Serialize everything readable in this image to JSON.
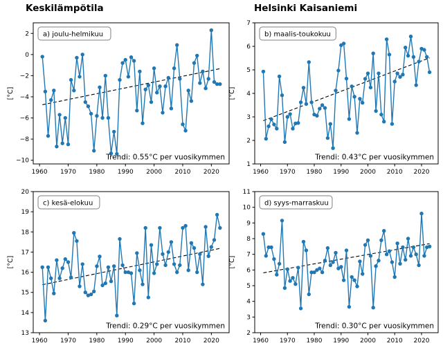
{
  "titles": {
    "left": "Keskilämpötila",
    "right": "Helsinki Kaisaniemi"
  },
  "colors": {
    "series": "#1f77b4",
    "trend": "#000000",
    "axis": "#000000",
    "panel_box_edge": "#7f7f7f"
  },
  "chart_data": [
    {
      "id": "a",
      "type": "line",
      "panel_label": "a) joulu-helmikuu",
      "trend_label": "Trendi: 0.55°C per vuosikymmen",
      "ylabel": "[°C]",
      "x_start": 1961,
      "xticks": [
        1960,
        1970,
        1980,
        1990,
        2000,
        2010,
        2020
      ],
      "xlim": [
        1957.8,
        2026.2
      ],
      "yticks": [
        2,
        0,
        -2,
        -4,
        -6,
        -8,
        -10
      ],
      "ylim": [
        -10.35,
        3.0
      ],
      "values": [
        -0.2,
        -3.5,
        -7.7,
        -4.3,
        -3.4,
        -8.7,
        -5.7,
        -8.4,
        -6.0,
        -8.5,
        -2.4,
        -3.4,
        -0.3,
        -2.1,
        0.0,
        -4.5,
        -4.9,
        -5.6,
        -9.1,
        -5.8,
        -3.1,
        -6.0,
        -2.0,
        -6.0,
        -9.35,
        -7.3,
        -9.4,
        -2.4,
        -0.8,
        -0.5,
        -2.1,
        -0.25,
        -0.6,
        -5.3,
        -1.6,
        -6.5,
        -3.3,
        -2.9,
        -4.5,
        -1.3,
        -3.6,
        -3.0,
        -5.5,
        -3.0,
        -2.2,
        -5.1,
        -1.3,
        0.9,
        -2.3,
        -6.6,
        -7.2,
        -3.4,
        -4.4,
        -0.8,
        -0.1,
        -2.7,
        -1.6,
        -3.2,
        -2.3,
        2.3,
        -2.6,
        -2.8,
        -2.8
      ],
      "trend": {
        "x": [
          1961,
          2023
        ],
        "y": [
          -4.75,
          -1.34
        ]
      }
    },
    {
      "id": "b",
      "type": "line",
      "panel_label": "b) maalis-toukokuu",
      "trend_label": "Trendi: 0.43°C per vuosikymmen",
      "ylabel": "[°C]",
      "x_start": 1961,
      "xticks": [
        1960,
        1970,
        1980,
        1990,
        2000,
        2010,
        2020
      ],
      "xlim": [
        1957.8,
        2026.2
      ],
      "yticks": [
        7,
        6,
        5,
        4,
        3,
        2,
        1
      ],
      "ylim": [
        1,
        7
      ],
      "values": [
        4.93,
        2.07,
        2.6,
        2.9,
        2.68,
        2.5,
        4.72,
        3.92,
        1.93,
        3.0,
        3.12,
        2.5,
        2.72,
        2.74,
        3.62,
        4.24,
        3.55,
        5.33,
        3.62,
        3.1,
        3.05,
        3.35,
        3.5,
        3.38,
        2.1,
        2.7,
        1.67,
        4.12,
        4.97,
        6.05,
        6.12,
        4.63,
        2.91,
        4.3,
        3.86,
        2.32,
        3.77,
        3.6,
        4.62,
        4.85,
        4.25,
        5.7,
        3.25,
        4.85,
        3.1,
        2.8,
        6.3,
        5.65,
        2.7,
        4.5,
        4.85,
        4.7,
        4.8,
        5.95,
        5.6,
        6.42,
        5.55,
        4.35,
        5.35,
        5.9,
        5.85,
        5.55,
        4.9
      ],
      "trend": {
        "x": [
          1961,
          2023
        ],
        "y": [
          2.84,
          5.51
        ]
      }
    },
    {
      "id": "c",
      "type": "line",
      "panel_label": "c) kesä-elokuu",
      "trend_label": "Trendi: 0.29°C per vuosikymmen",
      "ylabel": "[°C]",
      "x_start": 1961,
      "xticks": [
        1960,
        1970,
        1980,
        1990,
        2000,
        2010,
        2020
      ],
      "xlim": [
        1957.8,
        2026.2
      ],
      "yticks": [
        20,
        19,
        18,
        17,
        16,
        15,
        14,
        13
      ],
      "ylim": [
        13,
        20
      ],
      "values": [
        16.25,
        13.6,
        16.25,
        15.7,
        14.95,
        16.6,
        15.7,
        16.2,
        16.65,
        16.5,
        15.75,
        17.95,
        17.55,
        15.3,
        16.4,
        15.0,
        14.85,
        14.9,
        15.05,
        16.3,
        16.78,
        15.35,
        15.45,
        16.25,
        15.55,
        16.3,
        13.85,
        17.65,
        16.35,
        16.0,
        16.0,
        15.95,
        14.45,
        16.95,
        16.1,
        15.4,
        18.2,
        14.75,
        17.35,
        15.95,
        16.4,
        18.2,
        16.9,
        16.35,
        17.0,
        17.5,
        16.4,
        16.0,
        16.35,
        18.2,
        18.3,
        16.1,
        17.45,
        17.2,
        16.0,
        16.9,
        15.4,
        18.25,
        16.8,
        17.25,
        17.6,
        18.85,
        18.2
      ],
      "trend": {
        "x": [
          1961,
          2023
        ],
        "y": [
          15.38,
          17.18
        ]
      }
    },
    {
      "id": "d",
      "type": "line",
      "panel_label": "d) syys-marraskuu",
      "trend_label": "Trendi: 0.30°C per vuosikymmen",
      "ylabel": "[°C]",
      "x_start": 1961,
      "xticks": [
        1960,
        1970,
        1980,
        1990,
        2000,
        2010,
        2020
      ],
      "xlim": [
        1957.8,
        2026.2
      ],
      "yticks": [
        11,
        10,
        9,
        8,
        7,
        6,
        5,
        4,
        3,
        2
      ],
      "ylim": [
        2,
        11
      ],
      "values": [
        8.3,
        6.9,
        7.45,
        7.45,
        6.7,
        5.7,
        6.4,
        9.15,
        4.85,
        6.05,
        5.3,
        5.5,
        5.1,
        6.15,
        3.55,
        7.8,
        7.25,
        4.45,
        5.85,
        5.85,
        6.0,
        6.1,
        5.85,
        6.6,
        7.4,
        6.3,
        6.5,
        7.1,
        6.1,
        6.2,
        5.35,
        7.25,
        3.65,
        5.55,
        5.35,
        4.95,
        6.55,
        5.75,
        7.6,
        7.9,
        6.9,
        3.6,
        6.25,
        6.6,
        7.9,
        8.5,
        7.0,
        7.2,
        6.5,
        5.55,
        7.7,
        6.4,
        7.45,
        6.65,
        8.0,
        6.9,
        7.45,
        7.0,
        6.3,
        9.6,
        6.9,
        7.45,
        7.5
      ],
      "trend": {
        "x": [
          1961,
          2023
        ],
        "y": [
          5.82,
          7.68
        ]
      }
    }
  ]
}
